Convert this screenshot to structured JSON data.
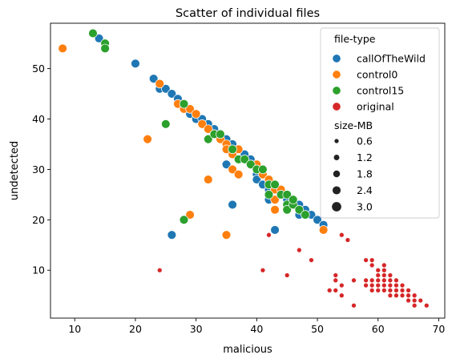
{
  "chart_data": {
    "type": "scatter",
    "title": "Scatter of individual files",
    "xlabel": "malicious",
    "ylabel": "undetected",
    "xlim": [
      6,
      71
    ],
    "ylim": [
      0.5,
      59
    ],
    "xticks": [
      10,
      20,
      30,
      40,
      50,
      60,
      70
    ],
    "yticks": [
      10,
      20,
      30,
      40,
      50
    ],
    "grid": false,
    "legend": {
      "placement": "top-right",
      "hue_title": "file-type",
      "size_title": "size-MB",
      "size_entries": [
        {
          "label": "0.6",
          "size": 0.6
        },
        {
          "label": "1.2",
          "size": 1.2
        },
        {
          "label": "1.8",
          "size": 1.8
        },
        {
          "label": "2.4",
          "size": 2.4
        },
        {
          "label": "3.0",
          "size": 3.0
        }
      ]
    },
    "series": [
      {
        "name": "callOfTheWild",
        "color": "#1f77b4",
        "size": 2.4,
        "points": [
          [
            14,
            56
          ],
          [
            20,
            51
          ],
          [
            23,
            48
          ],
          [
            24,
            46
          ],
          [
            25,
            46
          ],
          [
            26,
            45
          ],
          [
            27,
            44
          ],
          [
            28,
            43
          ],
          [
            29,
            41
          ],
          [
            30,
            40
          ],
          [
            31,
            40
          ],
          [
            32,
            39
          ],
          [
            33,
            38
          ],
          [
            34,
            37
          ],
          [
            35,
            36
          ],
          [
            36,
            35
          ],
          [
            37,
            34
          ],
          [
            38,
            33
          ],
          [
            39,
            32
          ],
          [
            40,
            31
          ],
          [
            40,
            29
          ],
          [
            40,
            28
          ],
          [
            41,
            30
          ],
          [
            41,
            27
          ],
          [
            42,
            28
          ],
          [
            42,
            26
          ],
          [
            43,
            26
          ],
          [
            44,
            25
          ],
          [
            45,
            24
          ],
          [
            46,
            24
          ],
          [
            47,
            23
          ],
          [
            47,
            21
          ],
          [
            48,
            22
          ],
          [
            49,
            21
          ],
          [
            50,
            20
          ],
          [
            51,
            19
          ],
          [
            35,
            31
          ],
          [
            36,
            23
          ],
          [
            26,
            17
          ],
          [
            43,
            18
          ],
          [
            42,
            24
          ]
        ]
      },
      {
        "name": "control0",
        "color": "#ff7f0e",
        "size": 2.4,
        "points": [
          [
            8,
            54
          ],
          [
            24,
            47
          ],
          [
            27,
            43
          ],
          [
            28,
            42
          ],
          [
            29,
            42
          ],
          [
            30,
            41
          ],
          [
            31,
            39
          ],
          [
            32,
            38
          ],
          [
            33,
            37
          ],
          [
            34,
            36
          ],
          [
            35,
            35
          ],
          [
            35,
            34
          ],
          [
            36,
            33
          ],
          [
            37,
            34
          ],
          [
            38,
            32
          ],
          [
            39,
            31
          ],
          [
            40,
            31
          ],
          [
            41,
            29
          ],
          [
            42,
            28
          ],
          [
            43,
            26
          ],
          [
            43,
            24
          ],
          [
            44,
            26
          ],
          [
            43,
            22
          ],
          [
            51,
            18
          ],
          [
            22,
            36
          ],
          [
            32,
            28
          ],
          [
            29,
            21
          ],
          [
            35,
            17
          ],
          [
            36,
            30
          ],
          [
            37,
            29
          ]
        ]
      },
      {
        "name": "control15",
        "color": "#2ca02c",
        "size": 2.4,
        "points": [
          [
            13,
            57
          ],
          [
            15,
            55
          ],
          [
            15,
            54
          ],
          [
            25,
            39
          ],
          [
            28,
            43
          ],
          [
            32,
            36
          ],
          [
            33,
            37
          ],
          [
            34,
            37
          ],
          [
            36,
            34
          ],
          [
            37,
            32
          ],
          [
            38,
            32
          ],
          [
            39,
            31
          ],
          [
            40,
            30
          ],
          [
            41,
            30
          ],
          [
            42,
            27
          ],
          [
            43,
            27
          ],
          [
            44,
            25
          ],
          [
            45,
            25
          ],
          [
            45,
            23
          ],
          [
            45,
            22
          ],
          [
            46,
            23
          ],
          [
            46,
            24
          ],
          [
            47,
            22
          ],
          [
            48,
            21
          ],
          [
            28,
            20
          ],
          [
            42,
            25
          ]
        ]
      },
      {
        "name": "original",
        "color": "#d62728",
        "size": 0.6,
        "points": [
          [
            24,
            10
          ],
          [
            41,
            10
          ],
          [
            42,
            17
          ],
          [
            45,
            9
          ],
          [
            47,
            14
          ],
          [
            49,
            12
          ],
          [
            52,
            6
          ],
          [
            53,
            6
          ],
          [
            53,
            9
          ],
          [
            53,
            8
          ],
          [
            54,
            7
          ],
          [
            54,
            5
          ],
          [
            54,
            17
          ],
          [
            55,
            16
          ],
          [
            56,
            3
          ],
          [
            56,
            8
          ],
          [
            58,
            12
          ],
          [
            58,
            8
          ],
          [
            58,
            7
          ],
          [
            59,
            12
          ],
          [
            59,
            11
          ],
          [
            59,
            8
          ],
          [
            59,
            7
          ],
          [
            59,
            6
          ],
          [
            60,
            10
          ],
          [
            60,
            9
          ],
          [
            60,
            8
          ],
          [
            60,
            7
          ],
          [
            60,
            6
          ],
          [
            61,
            11
          ],
          [
            61,
            10
          ],
          [
            61,
            9
          ],
          [
            61,
            8
          ],
          [
            61,
            7
          ],
          [
            61,
            6
          ],
          [
            62,
            9
          ],
          [
            62,
            8
          ],
          [
            62,
            7
          ],
          [
            62,
            6
          ],
          [
            62,
            5
          ],
          [
            63,
            8
          ],
          [
            63,
            7
          ],
          [
            63,
            6
          ],
          [
            63,
            5
          ],
          [
            64,
            7
          ],
          [
            64,
            6
          ],
          [
            64,
            5
          ],
          [
            65,
            6
          ],
          [
            65,
            5
          ],
          [
            65,
            4
          ],
          [
            66,
            5
          ],
          [
            66,
            4
          ],
          [
            66,
            3
          ],
          [
            67,
            4
          ],
          [
            68,
            3
          ]
        ]
      }
    ]
  }
}
